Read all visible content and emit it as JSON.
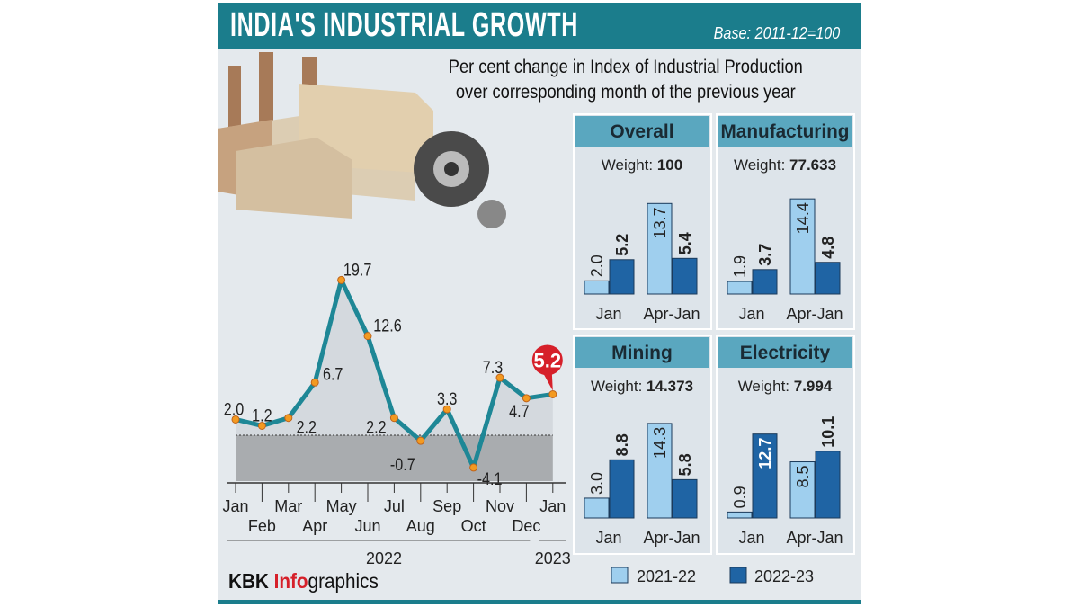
{
  "header": {
    "title": "INDIA'S INDUSTRIAL GROWTH",
    "base": "Base: 2011-12=100",
    "subtitle_line1": "Per cent change in Index of Industrial Production",
    "subtitle_line2": "over corresponding month of the previous year"
  },
  "credit": {
    "part1": "KBK ",
    "part2": "Info",
    "part3": "graphics"
  },
  "colors": {
    "teal": "#1b7d8c",
    "line": "#1e8796",
    "highlight": "#d6202a",
    "light_bar": "#9fcfee",
    "dark_bar": "#1f64a4",
    "panel_header": "#5aa7bf"
  },
  "chart_data": [
    {
      "type": "line",
      "x": [
        "Jan",
        "Feb",
        "Mar",
        "Apr",
        "May",
        "Jun",
        "Jul",
        "Aug",
        "Sep",
        "Oct",
        "Nov",
        "Dec",
        "Jan"
      ],
      "year_labels": [
        "2022",
        "2023"
      ],
      "values": [
        2.0,
        1.2,
        2.2,
        6.7,
        19.7,
        12.6,
        2.2,
        -0.7,
        3.3,
        -4.1,
        7.3,
        4.7,
        5.2
      ],
      "labels": [
        "2.0",
        "1.2",
        "2.2",
        "6.7",
        "19.7",
        "12.6",
        "2.2",
        "-0.7",
        "3.3",
        "-4.1",
        "7.3",
        "4.7",
        "5.2"
      ],
      "highlight": "5.2"
    },
    {
      "type": "bar",
      "panels": [
        {
          "title": "Overall",
          "weight_label": "Weight: ",
          "weight": "100",
          "categories": [
            "Jan",
            "Apr-Jan"
          ],
          "series": [
            {
              "name": "2021-22",
              "values": [
                2.0,
                13.7
              ],
              "labels": [
                "2.0",
                "13.7"
              ]
            },
            {
              "name": "2022-23",
              "values": [
                5.2,
                5.4
              ],
              "labels": [
                "5.2",
                "5.4"
              ]
            }
          ]
        },
        {
          "title": "Manufacturing",
          "weight_label": "Weight: ",
          "weight": "77.633",
          "categories": [
            "Jan",
            "Apr-Jan"
          ],
          "series": [
            {
              "name": "2021-22",
              "values": [
                1.9,
                14.4
              ],
              "labels": [
                "1.9",
                "14.4"
              ]
            },
            {
              "name": "2022-23",
              "values": [
                3.7,
                4.8
              ],
              "labels": [
                "3.7",
                "4.8"
              ]
            }
          ]
        },
        {
          "title": "Mining",
          "weight_label": "Weight: ",
          "weight": "14.373",
          "categories": [
            "Jan",
            "Apr-Jan"
          ],
          "series": [
            {
              "name": "2021-22",
              "values": [
                3.0,
                14.3
              ],
              "labels": [
                "3.0",
                "14.3"
              ]
            },
            {
              "name": "2022-23",
              "values": [
                8.8,
                5.8
              ],
              "labels": [
                "8.8",
                "5.8"
              ]
            }
          ]
        },
        {
          "title": "Electricity",
          "weight_label": "Weight: ",
          "weight": "7.994",
          "categories": [
            "Jan",
            "Apr-Jan"
          ],
          "series": [
            {
              "name": "2021-22",
              "values": [
                0.9,
                8.5
              ],
              "labels": [
                "0.9",
                "8.5"
              ]
            },
            {
              "name": "2022-23",
              "values": [
                12.7,
                10.1
              ],
              "labels": [
                "12.7",
                "10.1"
              ]
            }
          ]
        }
      ],
      "legend": [
        "2021-22",
        "2022-23"
      ]
    }
  ]
}
